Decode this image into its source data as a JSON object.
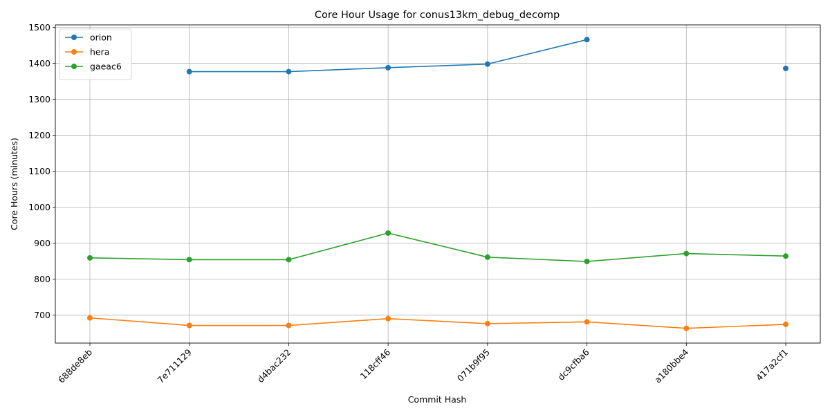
{
  "chart_data": {
    "type": "line",
    "title": "Core Hour Usage for conus13km_debug_decomp",
    "xlabel": "Commit Hash",
    "ylabel": "Core Hours (minutes)",
    "categories": [
      "688de8eb",
      "7e711129",
      "d4bac232",
      "118cff46",
      "071b9f95",
      "dc9cfba6",
      "a180bbe4",
      "417a2cf1"
    ],
    "ylim": [
      622,
      1507
    ],
    "yticks": [
      700,
      800,
      900,
      1000,
      1100,
      1200,
      1300,
      1400,
      1500
    ],
    "grid": true,
    "legend": "top-left",
    "series": [
      {
        "name": "orion",
        "color": "#1f77b4",
        "values": [
          null,
          1377,
          1377,
          1388,
          1398,
          1466,
          null,
          1386
        ]
      },
      {
        "name": "hera",
        "color": "#ff7f0e",
        "values": [
          692,
          671,
          671,
          690,
          676,
          681,
          663,
          674
        ]
      },
      {
        "name": "gaeac6",
        "color": "#2ca02c",
        "values": [
          859,
          854,
          854,
          928,
          861,
          849,
          871,
          864
        ]
      }
    ]
  }
}
